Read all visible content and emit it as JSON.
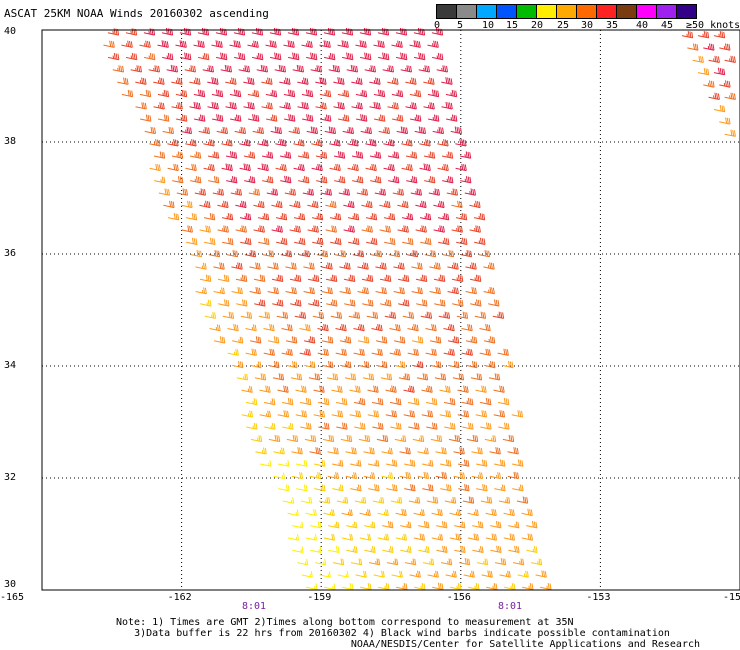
{
  "title": "ASCAT 25KM NOAA Winds 20160302 ascending",
  "legend": {
    "colors": [
      "#3a3a3a",
      "#8a8a8a",
      "#00a8ff",
      "#0055ff",
      "#00bb00",
      "#ffee00",
      "#ffaa00",
      "#ff6a00",
      "#ff2222",
      "#7a3b10",
      "#ff00ff",
      "#a020f0",
      "#330088"
    ],
    "labels": [
      "0",
      "5",
      "10",
      "15",
      "20",
      "25",
      "30",
      "35",
      "40",
      "45",
      "≥50 knots"
    ]
  },
  "axes": {
    "lat_labels": [
      "30",
      "32",
      "34",
      "36",
      "38",
      "40"
    ],
    "lon_labels": [
      "-165",
      "-162",
      "-159",
      "-156",
      "-153",
      "-150"
    ],
    "lon_label_right": "-15"
  },
  "time_labels": [
    "8:01",
    "8:01"
  ],
  "notes": [
    "Note: 1) Times are GMT 2)Times along bottom correspond to measurement at 35N",
    "3)Data buffer is 22 hrs from 20160302 4) Black wind barbs indicate possible contamination",
    "NOAA/NESDIS/Center for Satellite Applications and Research"
  ],
  "map_data": {
    "lat_range": [
      30,
      40
    ],
    "lon_range": [
      -165,
      -150
    ],
    "swath_main": {
      "top_lon": [
        -163.8,
        -156.2
      ],
      "bottom_lon": [
        -159.3,
        -154.0
      ]
    },
    "swath_right": {
      "top_lon": [
        -151.3,
        -150.0
      ],
      "bottom_lon": [
        -150.1,
        -150.0
      ],
      "lat_min": 37.7
    },
    "speed_pattern": "north high (~35-40 kt), decreasing southward; western edge weaker; south-west ~20-25 kt"
  }
}
